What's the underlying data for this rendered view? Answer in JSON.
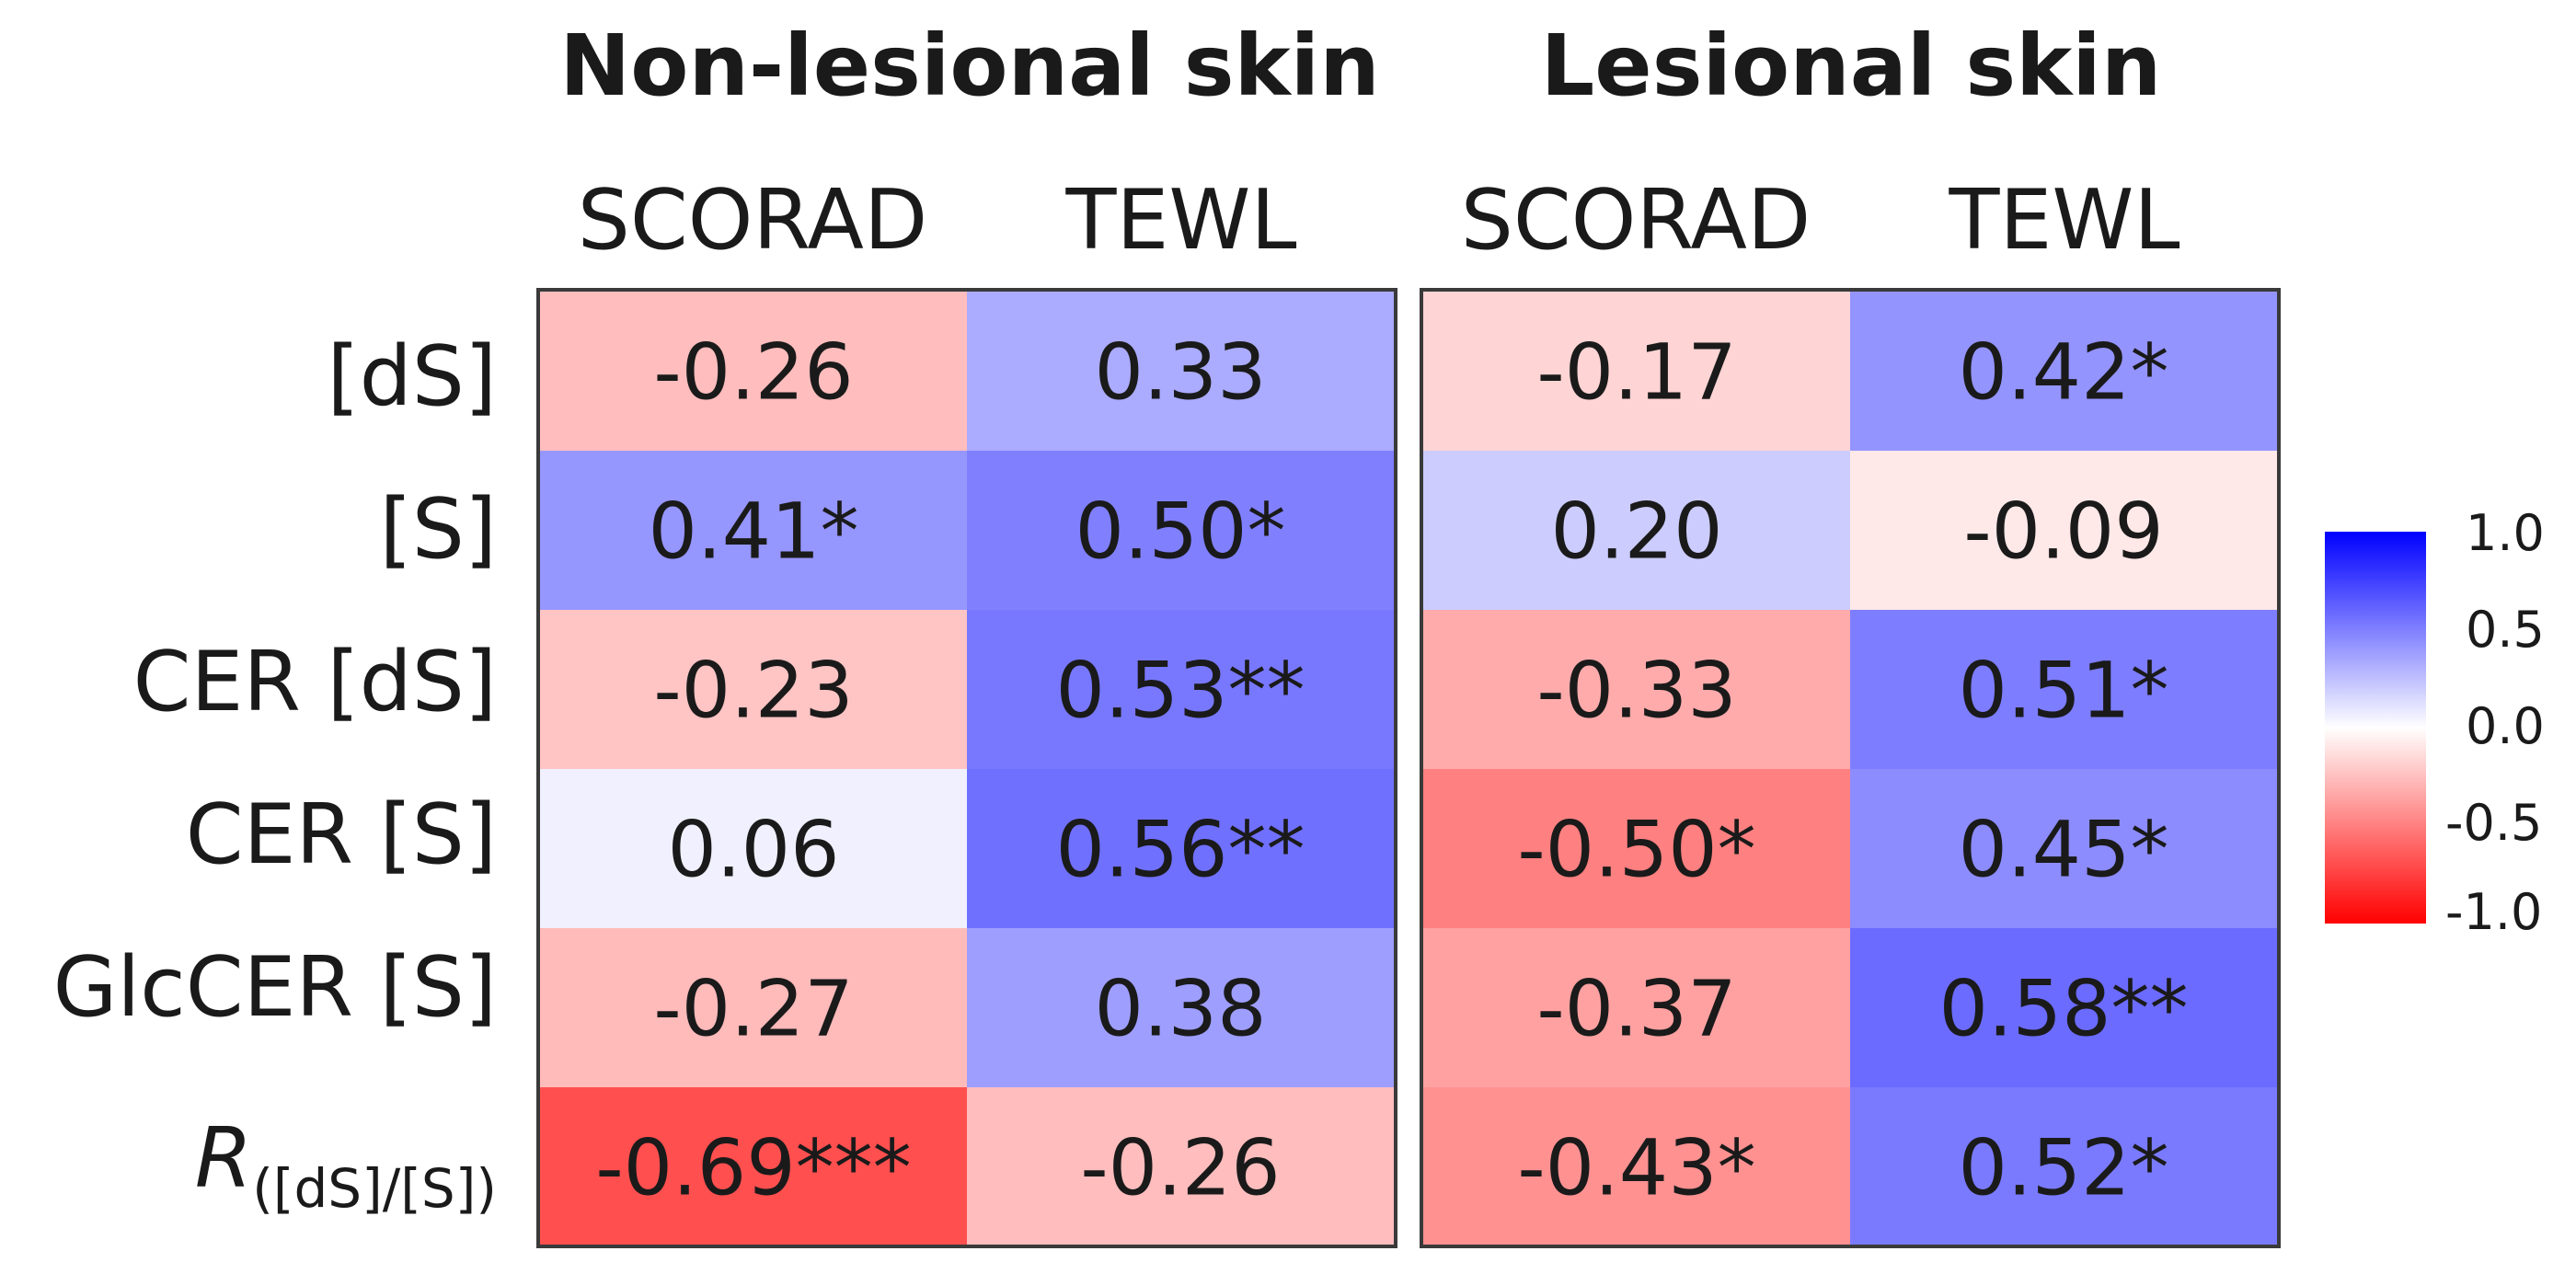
{
  "chart_data": {
    "type": "heatmap",
    "row_labels": [
      "[dS]",
      "[S]",
      "CER [dS]",
      "CER [S]",
      "GlcCER [S]"
    ],
    "ratio_label": {
      "main": "R",
      "sub": "([dS]/[S])"
    },
    "color_scale": {
      "min": -1.0,
      "max": 1.0,
      "low_color": "#ff0000",
      "mid_color": "#ffffff",
      "high_color": "#0000ff",
      "ticks": [
        "1.0",
        "0.5",
        "0.0",
        "-0.5",
        "-1.0"
      ]
    },
    "panels": [
      {
        "title": "Non-lesional skin",
        "columns": [
          "SCORAD",
          "TEWL"
        ],
        "values": [
          [
            -0.26,
            0.33
          ],
          [
            0.41,
            0.5
          ],
          [
            -0.23,
            0.53
          ],
          [
            0.06,
            0.56
          ],
          [
            -0.27,
            0.38
          ],
          [
            -0.69,
            -0.26
          ]
        ],
        "labels": [
          [
            "-0.26",
            "0.33"
          ],
          [
            "0.41*",
            "0.50*"
          ],
          [
            "-0.23",
            "0.53**"
          ],
          [
            "0.06",
            "0.56**"
          ],
          [
            "-0.27",
            "0.38"
          ],
          [
            "-0.69***",
            "-0.26"
          ]
        ]
      },
      {
        "title": "Lesional skin",
        "columns": [
          "SCORAD",
          "TEWL"
        ],
        "values": [
          [
            -0.17,
            0.42
          ],
          [
            0.2,
            -0.09
          ],
          [
            -0.33,
            0.51
          ],
          [
            -0.5,
            0.45
          ],
          [
            -0.37,
            0.58
          ],
          [
            -0.43,
            0.52
          ]
        ],
        "labels": [
          [
            "-0.17",
            "0.42*"
          ],
          [
            "0.20",
            "-0.09"
          ],
          [
            "-0.33",
            "0.51*"
          ],
          [
            "-0.50*",
            "0.45*"
          ],
          [
            "-0.37",
            "0.58**"
          ],
          [
            "-0.43*",
            "0.52*"
          ]
        ]
      }
    ]
  }
}
